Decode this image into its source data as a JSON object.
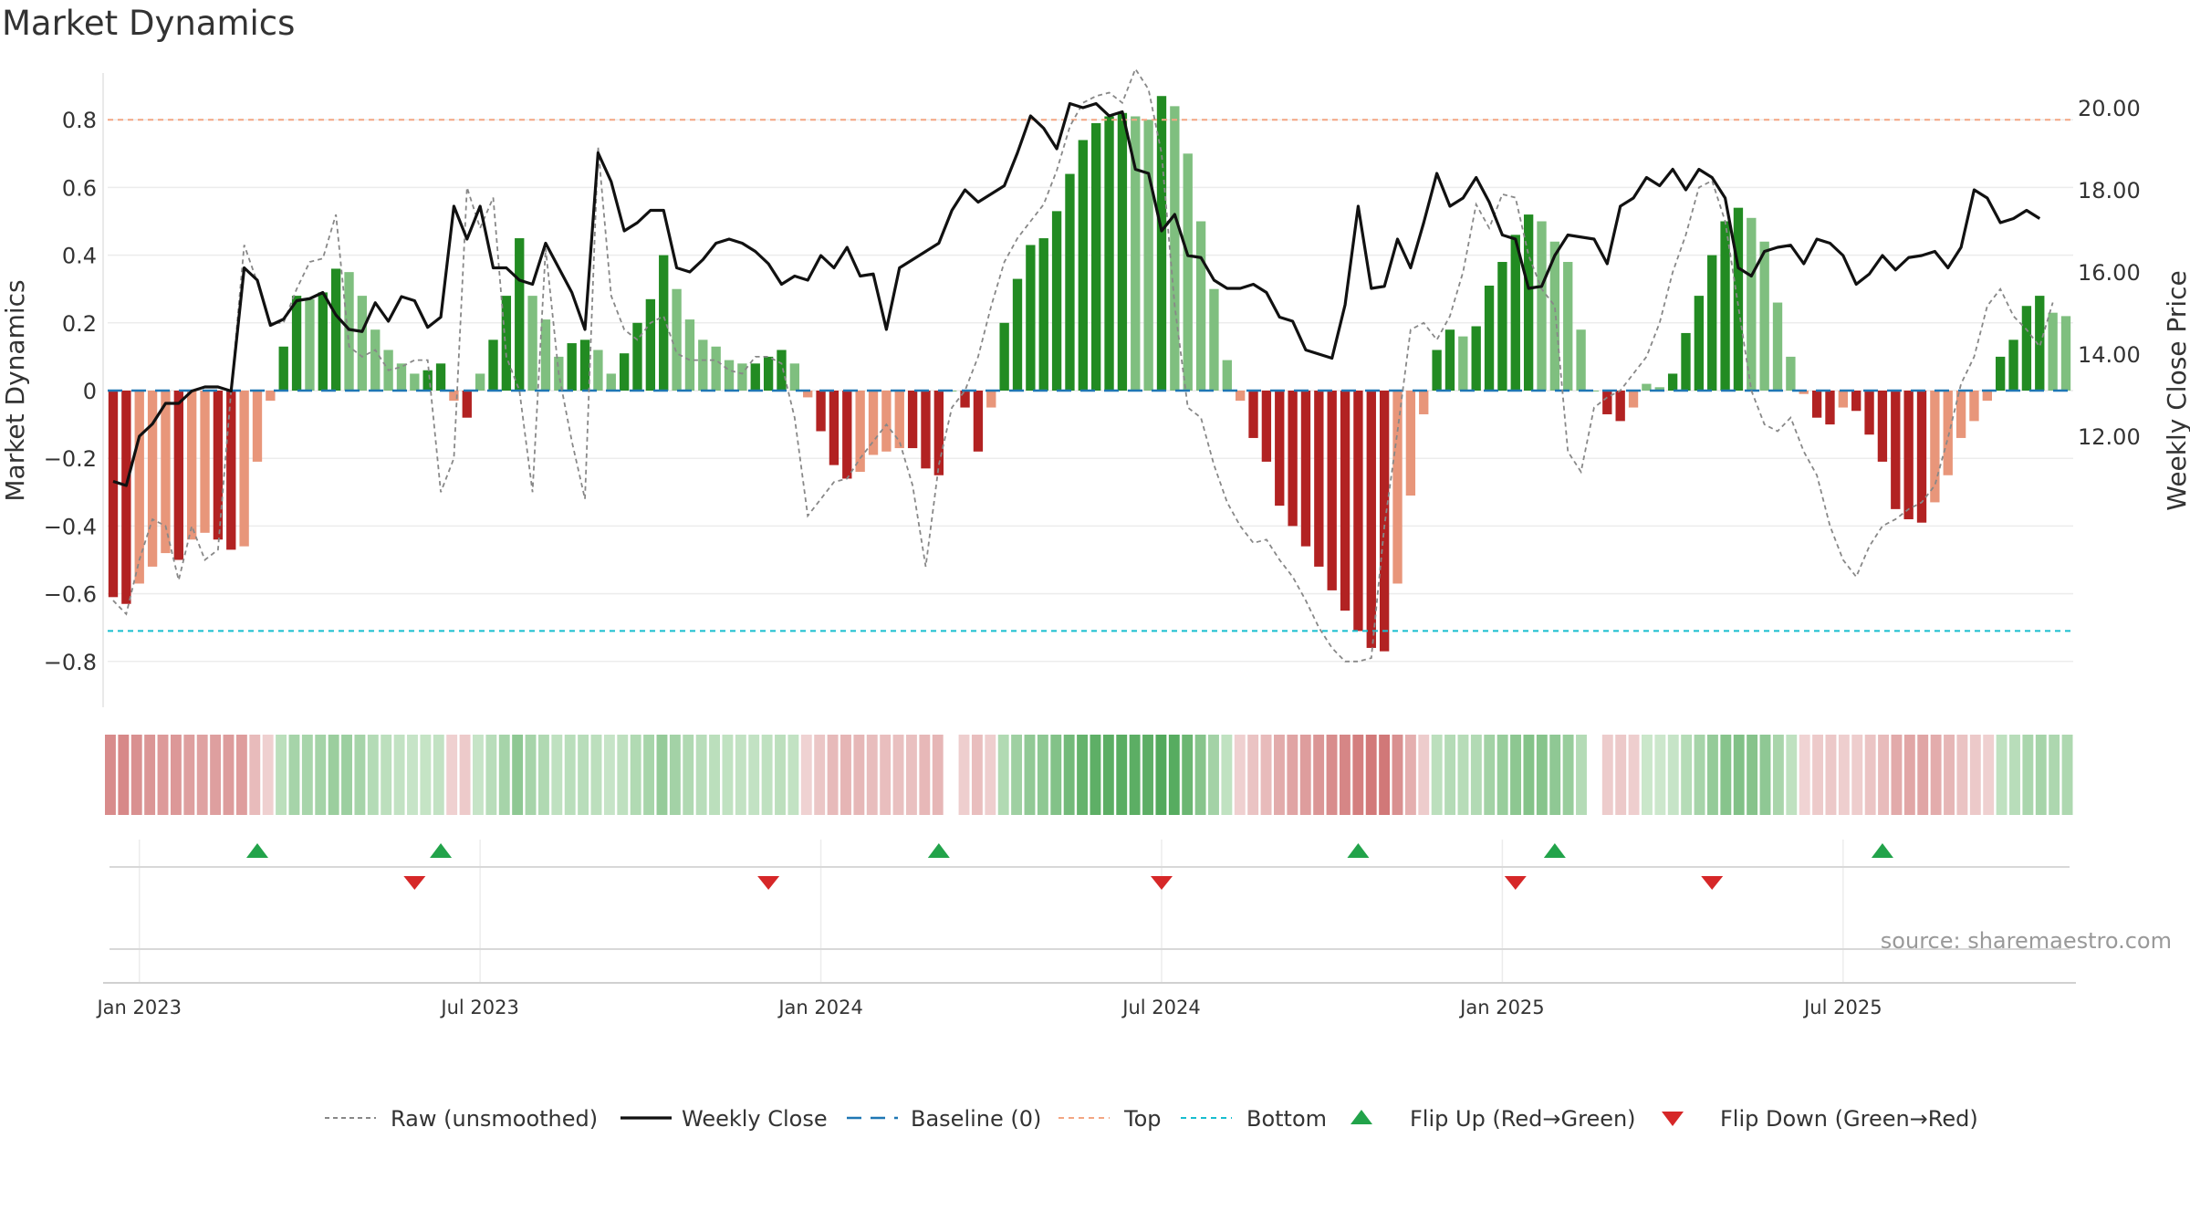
{
  "title": "Market Dynamics",
  "source": "source: sharemaestro.com",
  "colors": {
    "green_dark": "#228b22",
    "green_light": "#7fbf7f",
    "red_dark": "#b22222",
    "red_light": "#e8967a",
    "raw": "#888888",
    "close": "#111111",
    "baseline": "#1f77b4",
    "top": "#f4a582",
    "bottom": "#17becf",
    "flip_up": "#22a34a",
    "flip_down": "#d62728"
  },
  "chart_data": {
    "type": "bar",
    "title": "Market Dynamics",
    "ylabel": "Market Dynamics",
    "y2label": "Weekly Close Price",
    "ylim": [
      -0.92,
      0.95
    ],
    "y2lim": [
      10.6,
      20.9
    ],
    "y_ticks": [
      "0.8",
      "0.6",
      "0.4",
      "0.2",
      "0",
      "−0.2",
      "−0.4",
      "−0.6",
      "−0.8"
    ],
    "y2_ticks": [
      "20.00",
      "18.00",
      "16.00",
      "14.00",
      "12.00"
    ],
    "x_ticks": [
      {
        "label": "Jan 2023",
        "week": 2
      },
      {
        "label": "Jul 2023",
        "week": 28
      },
      {
        "label": "Jan 2024",
        "week": 54
      },
      {
        "label": "Jul 2024",
        "week": 80
      },
      {
        "label": "Jan 2025",
        "week": 106
      },
      {
        "label": "Jul 2025",
        "week": 132
      }
    ],
    "top": 0.8,
    "bottom": -0.71,
    "baseline": 0,
    "grid": true,
    "legend_position": "bottom",
    "legend": [
      "Raw (unsmoothed)",
      "Weekly Close",
      "Baseline (0)",
      "Top",
      "Bottom",
      "Flip Up (Red→Green)",
      "Flip Down (Green→Red)"
    ],
    "series": [
      {
        "name": "Market Dynamics (smoothed)",
        "values": [
          -0.61,
          -0.63,
          -0.57,
          -0.52,
          -0.48,
          -0.5,
          -0.44,
          -0.42,
          -0.44,
          -0.47,
          -0.46,
          -0.21,
          -0.03,
          0.13,
          0.28,
          0.27,
          0.29,
          0.36,
          0.35,
          0.28,
          0.18,
          0.12,
          0.08,
          0.05,
          0.06,
          0.08,
          -0.03,
          -0.08,
          0.05,
          0.15,
          0.28,
          0.45,
          0.28,
          0.21,
          0.1,
          0.14,
          0.15,
          0.12,
          0.05,
          0.11,
          0.2,
          0.27,
          0.4,
          0.3,
          0.21,
          0.15,
          0.13,
          0.09,
          0.08,
          0.08,
          0.1,
          0.12,
          0.08,
          -0.02,
          -0.12,
          -0.22,
          -0.26,
          -0.24,
          -0.19,
          -0.18,
          -0.17,
          -0.17,
          -0.23,
          -0.25,
          0,
          -0.05,
          -0.18,
          -0.05,
          0.2,
          0.33,
          0.43,
          0.45,
          0.53,
          0.64,
          0.74,
          0.79,
          0.81,
          0.82,
          0.81,
          0.8,
          0.87,
          0.84,
          0.7,
          0.5,
          0.3,
          0.09,
          -0.03,
          -0.14,
          -0.21,
          -0.34,
          -0.4,
          -0.46,
          -0.52,
          -0.59,
          -0.65,
          -0.71,
          -0.76,
          -0.77,
          -0.57,
          -0.31,
          -0.07,
          0.12,
          0.18,
          0.16,
          0.19,
          0.31,
          0.38,
          0.46,
          0.52,
          0.5,
          0.44,
          0.38,
          0.18,
          0,
          -0.07,
          -0.09,
          -0.05,
          0.02,
          0.01,
          0.05,
          0.17,
          0.28,
          0.4,
          0.5,
          0.54,
          0.51,
          0.44,
          0.26,
          0.1,
          -0.01,
          -0.08,
          -0.1,
          -0.05,
          -0.06,
          -0.13,
          -0.21,
          -0.35,
          -0.38,
          -0.39,
          -0.33,
          -0.25,
          -0.14,
          -0.09,
          -0.03,
          0.1,
          0.15,
          0.25,
          0.28,
          0.23,
          0.22
        ]
      },
      {
        "name": "Raw (unsmoothed)",
        "values": [
          -0.62,
          -0.66,
          -0.5,
          -0.38,
          -0.4,
          -0.56,
          -0.4,
          -0.5,
          -0.47,
          0.0,
          0.43,
          0.32,
          0.2,
          0.2,
          0.3,
          0.38,
          0.39,
          0.52,
          0.13,
          0.1,
          0.12,
          0.06,
          0.07,
          0.09,
          0.09,
          -0.3,
          -0.2,
          0.6,
          0.48,
          0.57,
          0.1,
          0.0,
          -0.3,
          0.42,
          0.05,
          -0.15,
          -0.32,
          0.72,
          0.28,
          0.18,
          0.15,
          0.2,
          0.22,
          0.11,
          0.09,
          0.09,
          0.09,
          0.06,
          0.05,
          0.1,
          0.1,
          0.08,
          -0.08,
          -0.37,
          -0.32,
          -0.27,
          -0.26,
          -0.2,
          -0.15,
          -0.1,
          -0.15,
          -0.28,
          -0.52,
          -0.22,
          -0.05,
          0.0,
          0.1,
          0.25,
          0.38,
          0.45,
          0.5,
          0.55,
          0.65,
          0.78,
          0.85,
          0.87,
          0.88,
          0.85,
          0.95,
          0.89,
          0.7,
          0.25,
          -0.05,
          -0.08,
          -0.22,
          -0.33,
          -0.4,
          -0.45,
          -0.44,
          -0.5,
          -0.55,
          -0.62,
          -0.7,
          -0.76,
          -0.8,
          -0.8,
          -0.79,
          -0.4,
          -0.12,
          0.18,
          0.2,
          0.15,
          0.22,
          0.35,
          0.55,
          0.48,
          0.58,
          0.57,
          0.4,
          0.3,
          0.25,
          -0.18,
          -0.24,
          -0.05,
          -0.02,
          0.0,
          0.05,
          0.1,
          0.2,
          0.35,
          0.46,
          0.6,
          0.62,
          0.5,
          0.25,
          0.0,
          -0.1,
          -0.12,
          -0.08,
          -0.18,
          -0.25,
          -0.4,
          -0.5,
          -0.55,
          -0.46,
          -0.4,
          -0.38,
          -0.35,
          -0.33,
          -0.28,
          -0.14,
          0.02,
          0.1,
          0.25,
          0.3,
          0.22,
          0.18,
          0.13,
          0.26
        ]
      },
      {
        "name": "Weekly Close",
        "values": [
          10.9,
          10.8,
          12.0,
          12.3,
          12.8,
          12.8,
          13.1,
          13.2,
          13.2,
          13.1,
          16.1,
          15.8,
          14.7,
          14.85,
          15.3,
          15.35,
          15.5,
          14.95,
          14.6,
          14.55,
          15.25,
          14.8,
          15.4,
          15.3,
          14.65,
          14.9,
          17.6,
          16.8,
          17.6,
          16.1,
          16.1,
          15.8,
          15.7,
          16.7,
          16.1,
          15.5,
          14.6,
          18.9,
          18.2,
          17.0,
          17.2,
          17.5,
          17.5,
          16.1,
          16.0,
          16.3,
          16.7,
          16.8,
          16.7,
          16.5,
          16.2,
          15.7,
          15.9,
          15.8,
          16.4,
          16.1,
          16.6,
          15.9,
          15.95,
          14.6,
          16.1,
          16.3,
          16.5,
          16.7,
          17.5,
          18.0,
          17.7,
          17.9,
          18.1,
          18.9,
          19.8,
          19.5,
          19.0,
          20.1,
          20.0,
          20.1,
          19.8,
          19.9,
          18.5,
          18.4,
          17.0,
          17.4,
          16.4,
          16.35,
          15.8,
          15.6,
          15.6,
          15.7,
          15.5,
          14.9,
          14.8,
          14.1,
          14.0,
          13.9,
          15.2,
          17.6,
          15.6,
          15.65,
          16.8,
          16.1,
          17.2,
          18.4,
          17.6,
          17.8,
          18.3,
          17.7,
          16.9,
          16.8,
          15.6,
          15.65,
          16.4,
          16.9,
          16.85,
          16.8,
          16.2,
          17.6,
          17.8,
          18.3,
          18.1,
          18.5,
          18.0,
          18.5,
          18.3,
          17.8,
          16.1,
          15.9,
          16.5,
          16.6,
          16.65,
          16.2,
          16.8,
          16.7,
          16.4,
          15.7,
          15.95,
          16.4,
          16.05,
          16.35,
          16.4,
          16.5,
          16.1,
          16.6,
          18.0,
          17.8,
          17.2,
          17.3,
          17.5,
          17.3
        ]
      }
    ],
    "band_values": [
      -0.61,
      -0.63,
      -0.57,
      -0.52,
      -0.48,
      -0.5,
      -0.44,
      -0.42,
      -0.44,
      -0.47,
      -0.46,
      -0.21,
      -0.03,
      0.13,
      0.28,
      0.27,
      0.29,
      0.36,
      0.35,
      0.28,
      0.18,
      0.12,
      0.08,
      0.05,
      0.06,
      0.08,
      -0.03,
      -0.08,
      0.05,
      0.15,
      0.28,
      0.45,
      0.28,
      0.21,
      0.1,
      0.14,
      0.15,
      0.12,
      0.05,
      0.11,
      0.2,
      0.27,
      0.4,
      0.3,
      0.21,
      0.15,
      0.13,
      0.09,
      0.08,
      0.08,
      0.1,
      0.12,
      0.08,
      -0.02,
      -0.12,
      -0.22,
      -0.26,
      -0.24,
      -0.19,
      -0.18,
      -0.17,
      -0.17,
      -0.23,
      -0.25,
      0,
      -0.05,
      -0.18,
      -0.05,
      0.2,
      0.33,
      0.43,
      0.45,
      0.53,
      0.64,
      0.74,
      0.79,
      0.81,
      0.82,
      0.81,
      0.8,
      0.87,
      0.84,
      0.7,
      0.5,
      0.3,
      0.09,
      -0.03,
      -0.14,
      -0.21,
      -0.34,
      -0.4,
      -0.46,
      -0.52,
      -0.59,
      -0.65,
      -0.71,
      -0.76,
      -0.77,
      -0.57,
      -0.31,
      -0.07,
      0.12,
      0.18,
      0.16,
      0.19,
      0.31,
      0.38,
      0.46,
      0.52,
      0.5,
      0.44,
      0.38,
      0.18,
      0,
      -0.07,
      -0.09,
      -0.05,
      0.02,
      0.01,
      0.05,
      0.17,
      0.28,
      0.4,
      0.5,
      0.54,
      0.51,
      0.44,
      0.26,
      0.1,
      -0.01,
      -0.08,
      -0.1,
      -0.05,
      -0.06,
      -0.13,
      -0.21,
      -0.35,
      -0.38,
      -0.39,
      -0.33,
      -0.25,
      -0.14,
      -0.09,
      -0.03,
      0.1,
      0.15,
      0.25,
      0.28,
      0.23,
      0.22
    ],
    "flips_up": [
      11,
      25,
      63,
      95,
      110,
      135
    ],
    "flips_down": [
      23,
      50,
      80,
      107,
      122
    ]
  }
}
